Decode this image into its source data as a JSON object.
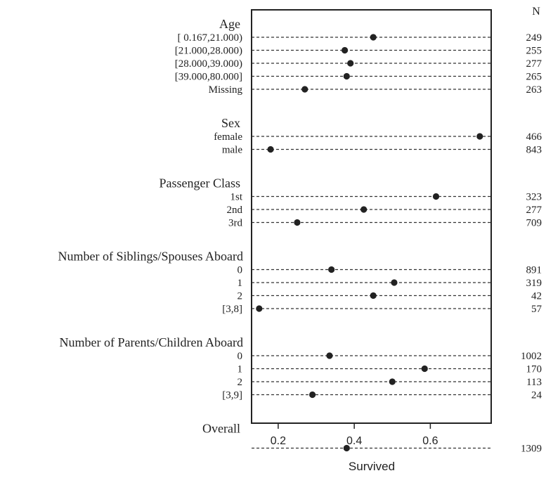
{
  "chart_data": {
    "type": "scatter",
    "title": "",
    "xlabel": "Survived",
    "n_header": "N",
    "xlim": [
      0.13,
      0.76
    ],
    "xticks": [
      0.2,
      0.4,
      0.6
    ],
    "xtick_labels": [
      "0.2",
      "0.4",
      "0.6"
    ],
    "grid": "dashed guide line per row",
    "groups": [
      {
        "name": "Age",
        "rows": [
          {
            "label": "[ 0.167,21.000)",
            "value": 0.45,
            "n": "249"
          },
          {
            "label": "[21.000,28.000)",
            "value": 0.375,
            "n": "255"
          },
          {
            "label": "[28.000,39.000)",
            "value": 0.39,
            "n": "277"
          },
          {
            "label": "[39.000,80.000]",
            "value": 0.38,
            "n": "265"
          },
          {
            "label": "Missing",
            "value": 0.27,
            "n": "263"
          }
        ]
      },
      {
        "name": "Sex",
        "rows": [
          {
            "label": "female",
            "value": 0.73,
            "n": "466"
          },
          {
            "label": "male",
            "value": 0.18,
            "n": "843"
          }
        ]
      },
      {
        "name": "Passenger Class",
        "rows": [
          {
            "label": "1st",
            "value": 0.615,
            "n": "323"
          },
          {
            "label": "2nd",
            "value": 0.425,
            "n": "277"
          },
          {
            "label": "3rd",
            "value": 0.25,
            "n": "709"
          }
        ]
      },
      {
        "name": "Number of Siblings/Spouses Aboard",
        "rows": [
          {
            "label": "0",
            "value": 0.34,
            "n": "891"
          },
          {
            "label": "1",
            "value": 0.505,
            "n": "319"
          },
          {
            "label": "2",
            "value": 0.45,
            "n": "42"
          },
          {
            "label": "[3,8]",
            "value": 0.15,
            "n": "57"
          }
        ]
      },
      {
        "name": "Number of Parents/Children Aboard",
        "rows": [
          {
            "label": "0",
            "value": 0.335,
            "n": "1002"
          },
          {
            "label": "1",
            "value": 0.585,
            "n": "170"
          },
          {
            "label": "2",
            "value": 0.5,
            "n": "113"
          },
          {
            "label": "[3,9]",
            "value": 0.29,
            "n": "24"
          }
        ]
      },
      {
        "name": "Overall",
        "rows": [
          {
            "label": "",
            "value": 0.38,
            "n": "1309"
          }
        ]
      }
    ]
  }
}
